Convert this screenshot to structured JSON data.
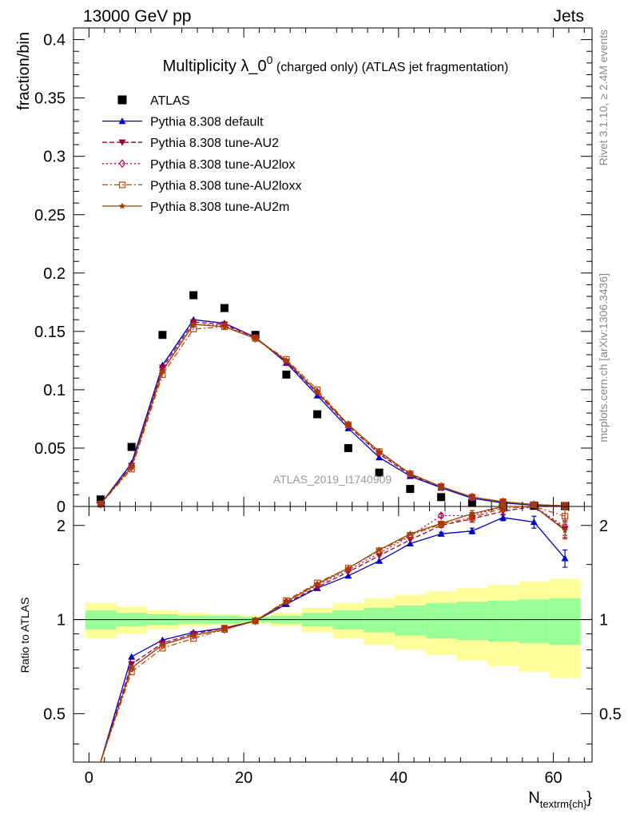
{
  "header": {
    "left": "13000 GeV pp",
    "right": "Jets"
  },
  "side_text": {
    "rivet": "Rivet 3.1.10, ≥ 2.4M events",
    "mcplots": "mcplots.cern.ch [arXiv:1306.3436]"
  },
  "chart_data": {
    "type": "line",
    "title_main": "Multiplicity λ_0",
    "title_sup": "0",
    "title_rest": " (charged only) (ATLAS jet fragmentation)",
    "watermark": "ATLAS_2019_I1740909",
    "xlabel_main": "N",
    "xlabel_sub": "textrm{ch}",
    "xlabel_close": "}",
    "ylabel_top": "fraction/bin",
    "ylabel_bottom": "Ratio to ATLAS",
    "xlim": [
      -2,
      65
    ],
    "ylim_top": [
      0,
      0.41
    ],
    "ylim_bottom": [
      0.35,
      2.3
    ],
    "x_ticks": [
      0,
      20,
      40,
      60
    ],
    "x_tick_labels": [
      "0",
      "20",
      "40",
      "60"
    ],
    "y_ticks_top": [
      0,
      0.05,
      0.1,
      0.15,
      0.2,
      0.25,
      0.3,
      0.35,
      0.4
    ],
    "y_tick_labels_top": [
      "0",
      "0.05",
      "0.1",
      "0.15",
      "0.2",
      "0.25",
      "0.3",
      "0.35",
      "0.4"
    ],
    "y_ticks_bottom": [
      0.5,
      1,
      2
    ],
    "y_tick_labels_bottom": [
      "0.5",
      "1",
      "2"
    ],
    "x": [
      1.5,
      5.5,
      9.5,
      13.5,
      17.5,
      21.5,
      25.5,
      29.5,
      33.5,
      37.5,
      41.5,
      45.5,
      49.5,
      53.5,
      57.5,
      61.5
    ],
    "bin_edges": [
      -0.5,
      3.5,
      7.5,
      11.5,
      15.5,
      19.5,
      23.5,
      27.5,
      31.5,
      35.5,
      39.5,
      43.5,
      47.5,
      51.5,
      55.5,
      59.5,
      63.5
    ],
    "band_inner": [
      0.07,
      0.05,
      0.04,
      0.03,
      0.03,
      0.02,
      0.03,
      0.05,
      0.07,
      0.09,
      0.11,
      0.13,
      0.14,
      0.15,
      0.16,
      0.17
    ],
    "band_outer": [
      0.13,
      0.1,
      0.07,
      0.05,
      0.04,
      0.03,
      0.05,
      0.09,
      0.13,
      0.17,
      0.2,
      0.23,
      0.26,
      0.29,
      0.32,
      0.35
    ],
    "series": [
      {
        "name": "ATLAS",
        "color": "#000000",
        "marker": "square",
        "line": "none",
        "values": [
          0.006,
          0.051,
          0.147,
          0.181,
          0.17,
          0.147,
          0.113,
          0.079,
          0.05,
          0.029,
          0.015,
          0.008,
          0.003,
          0.001,
          0.0005,
          0.0003
        ],
        "ratio": null
      },
      {
        "name": "Pythia 8.308 default",
        "color": "#0000cc",
        "marker": "triangle-up",
        "line": "solid",
        "values": [
          0.002,
          0.037,
          0.121,
          0.16,
          0.157,
          0.145,
          0.123,
          0.095,
          0.067,
          0.042,
          0.026,
          0.016,
          0.007,
          0.003,
          0.001,
          0.0004
        ],
        "ratio": [
          0.3,
          0.76,
          0.86,
          0.91,
          0.94,
          0.99,
          1.12,
          1.26,
          1.38,
          1.54,
          1.75,
          1.88,
          1.92,
          2.12,
          2.05,
          1.57
        ],
        "ratio_err": [
          0,
          0,
          0,
          0,
          0,
          0,
          0,
          0,
          0,
          0,
          0,
          0.02,
          0.04,
          0.05,
          0.09,
          0.1
        ]
      },
      {
        "name": "Pythia 8.308 tune-AU2",
        "color": "#990033",
        "marker": "triangle-down",
        "line": "dashed",
        "values": [
          0.002,
          0.035,
          0.119,
          0.158,
          0.156,
          0.145,
          0.124,
          0.097,
          0.069,
          0.045,
          0.027,
          0.017,
          0.008,
          0.004,
          0.0015,
          0.0005
        ],
        "ratio": [
          0.3,
          0.72,
          0.84,
          0.9,
          0.94,
          0.99,
          1.13,
          1.27,
          1.42,
          1.6,
          1.8,
          2.0,
          2.1,
          2.22,
          2.6,
          1.95
        ],
        "ratio_err": [
          0,
          0,
          0,
          0,
          0,
          0,
          0,
          0,
          0,
          0,
          0,
          0.03,
          0.05,
          0.06,
          0.1,
          0.12
        ]
      },
      {
        "name": "Pythia 8.308 tune-AU2lox",
        "color": "#bb0055",
        "marker": "diamond-open",
        "line": "dotted",
        "values": [
          0.002,
          0.034,
          0.117,
          0.156,
          0.155,
          0.144,
          0.124,
          0.098,
          0.07,
          0.046,
          0.028,
          0.017,
          0.008,
          0.004,
          0.0015,
          0.0005
        ],
        "ratio": [
          0.3,
          0.7,
          0.83,
          0.89,
          0.93,
          0.99,
          1.14,
          1.29,
          1.44,
          1.63,
          1.85,
          2.15,
          2.15,
          2.32,
          2.7,
          1.98
        ],
        "ratio_err": [
          0,
          0,
          0,
          0,
          0,
          0,
          0,
          0,
          0,
          0,
          0,
          0.03,
          0.05,
          0.06,
          0.1,
          0.12
        ]
      },
      {
        "name": "Pythia 8.308 tune-AU2loxx",
        "color": "#cc4400",
        "marker": "square-open",
        "line": "dashdot",
        "values": [
          0.002,
          0.032,
          0.113,
          0.152,
          0.154,
          0.144,
          0.126,
          0.1,
          0.07,
          0.047,
          0.028,
          0.017,
          0.008,
          0.004,
          0.0016,
          0.0005
        ],
        "ratio": [
          0.3,
          0.68,
          0.81,
          0.87,
          0.93,
          0.99,
          1.15,
          1.31,
          1.46,
          1.66,
          1.86,
          2.02,
          2.12,
          2.27,
          2.6,
          2.14
        ],
        "ratio_err": [
          0,
          0,
          0,
          0,
          0,
          0,
          0,
          0,
          0,
          0,
          0,
          0.03,
          0.05,
          0.06,
          0.1,
          0.12
        ]
      },
      {
        "name": "Pythia 8.308 tune-AU2m",
        "color": "#994400",
        "marker": "star",
        "line": "solid",
        "values": [
          0.002,
          0.034,
          0.116,
          0.156,
          0.154,
          0.144,
          0.125,
          0.098,
          0.07,
          0.047,
          0.028,
          0.017,
          0.008,
          0.004,
          0.0016,
          0.0005
        ],
        "ratio": [
          0.3,
          0.7,
          0.83,
          0.89,
          0.93,
          0.99,
          1.14,
          1.3,
          1.46,
          1.67,
          1.88,
          2.03,
          2.18,
          2.3,
          2.55,
          1.93
        ],
        "ratio_err": [
          0,
          0,
          0,
          0,
          0,
          0,
          0,
          0,
          0,
          0,
          0,
          0.03,
          0.05,
          0.06,
          0.1,
          0.12
        ]
      }
    ]
  }
}
